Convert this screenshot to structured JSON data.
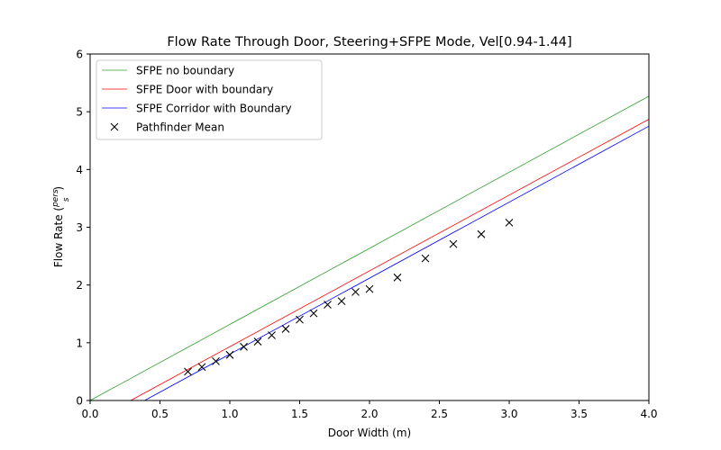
{
  "chart_data": {
    "type": "line",
    "title": "Flow Rate Through Door, Steering+SFPE Mode, Vel[0.94-1.44]",
    "xlabel": "Door Width (m)",
    "ylabel_prefix": "Flow Rate (",
    "ylabel_numerator": "pers",
    "ylabel_denominator": "s",
    "ylabel_suffix": ")",
    "xlim": [
      0.0,
      4.0
    ],
    "ylim": [
      0,
      6
    ],
    "xticks": [
      0.0,
      0.5,
      1.0,
      1.5,
      2.0,
      2.5,
      3.0,
      3.5,
      4.0
    ],
    "xtick_labels": [
      "0.0",
      "0.5",
      "1.0",
      "1.5",
      "2.0",
      "2.5",
      "3.0",
      "3.5",
      "4.0"
    ],
    "yticks": [
      0,
      1,
      2,
      3,
      4,
      5,
      6
    ],
    "ytick_labels": [
      "0",
      "1",
      "2",
      "3",
      "4",
      "5",
      "6"
    ],
    "grid": false,
    "legend_position": "top-left",
    "series": [
      {
        "name": "SFPE no boundary",
        "kind": "line",
        "color": "#2ca02c",
        "x": [
          0.0,
          4.0
        ],
        "y": [
          0.0,
          5.27
        ]
      },
      {
        "name": "SFPE Door with boundary",
        "kind": "line",
        "color": "#ff0000",
        "x": [
          0.29,
          4.0
        ],
        "y": [
          0.0,
          4.87
        ]
      },
      {
        "name": "SFPE Corridor with Boundary",
        "kind": "line",
        "color": "#0000ff",
        "x": [
          0.39,
          4.0
        ],
        "y": [
          0.0,
          4.75
        ]
      },
      {
        "name": "Pathfinder Mean",
        "kind": "scatter",
        "color": "#000000",
        "marker": "x",
        "x": [
          0.7,
          0.8,
          0.9,
          1.0,
          1.1,
          1.2,
          1.3,
          1.4,
          1.5,
          1.6,
          1.7,
          1.8,
          1.9,
          2.0,
          2.2,
          2.4,
          2.6,
          2.8,
          3.0
        ],
        "y": [
          0.5,
          0.58,
          0.68,
          0.79,
          0.93,
          1.02,
          1.13,
          1.24,
          1.4,
          1.51,
          1.66,
          1.72,
          1.88,
          1.93,
          2.13,
          2.46,
          2.71,
          2.88,
          3.08
        ]
      }
    ]
  }
}
